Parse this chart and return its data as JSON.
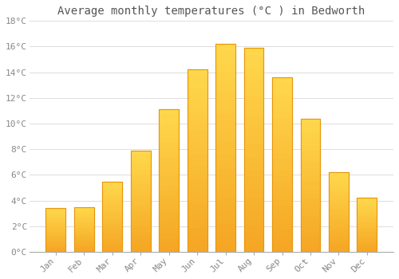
{
  "title": "Average monthly temperatures (°C ) in Bedworth",
  "months": [
    "Jan",
    "Feb",
    "Mar",
    "Apr",
    "May",
    "Jun",
    "Jul",
    "Aug",
    "Sep",
    "Oct",
    "Nov",
    "Dec"
  ],
  "temperatures": [
    3.4,
    3.5,
    5.5,
    7.9,
    11.1,
    14.2,
    16.2,
    15.9,
    13.6,
    10.4,
    6.2,
    4.2
  ],
  "bar_color_bottom": "#F5A623",
  "bar_color_top": "#FFD966",
  "bar_edge_color": "#E8960A",
  "background_color": "#FFFFFF",
  "plot_bg_color": "#FFFFFF",
  "grid_color": "#DDDDDD",
  "ylim": [
    0,
    18
  ],
  "yticks": [
    0,
    2,
    4,
    6,
    8,
    10,
    12,
    14,
    16,
    18
  ],
  "ytick_labels": [
    "0°C",
    "2°C",
    "4°C",
    "6°C",
    "8°C",
    "10°C",
    "12°C",
    "14°C",
    "16°C",
    "18°C"
  ],
  "title_fontsize": 10,
  "tick_fontsize": 8,
  "tick_color": "#888888",
  "title_color": "#555555",
  "font_family": "monospace",
  "bar_width": 0.7
}
